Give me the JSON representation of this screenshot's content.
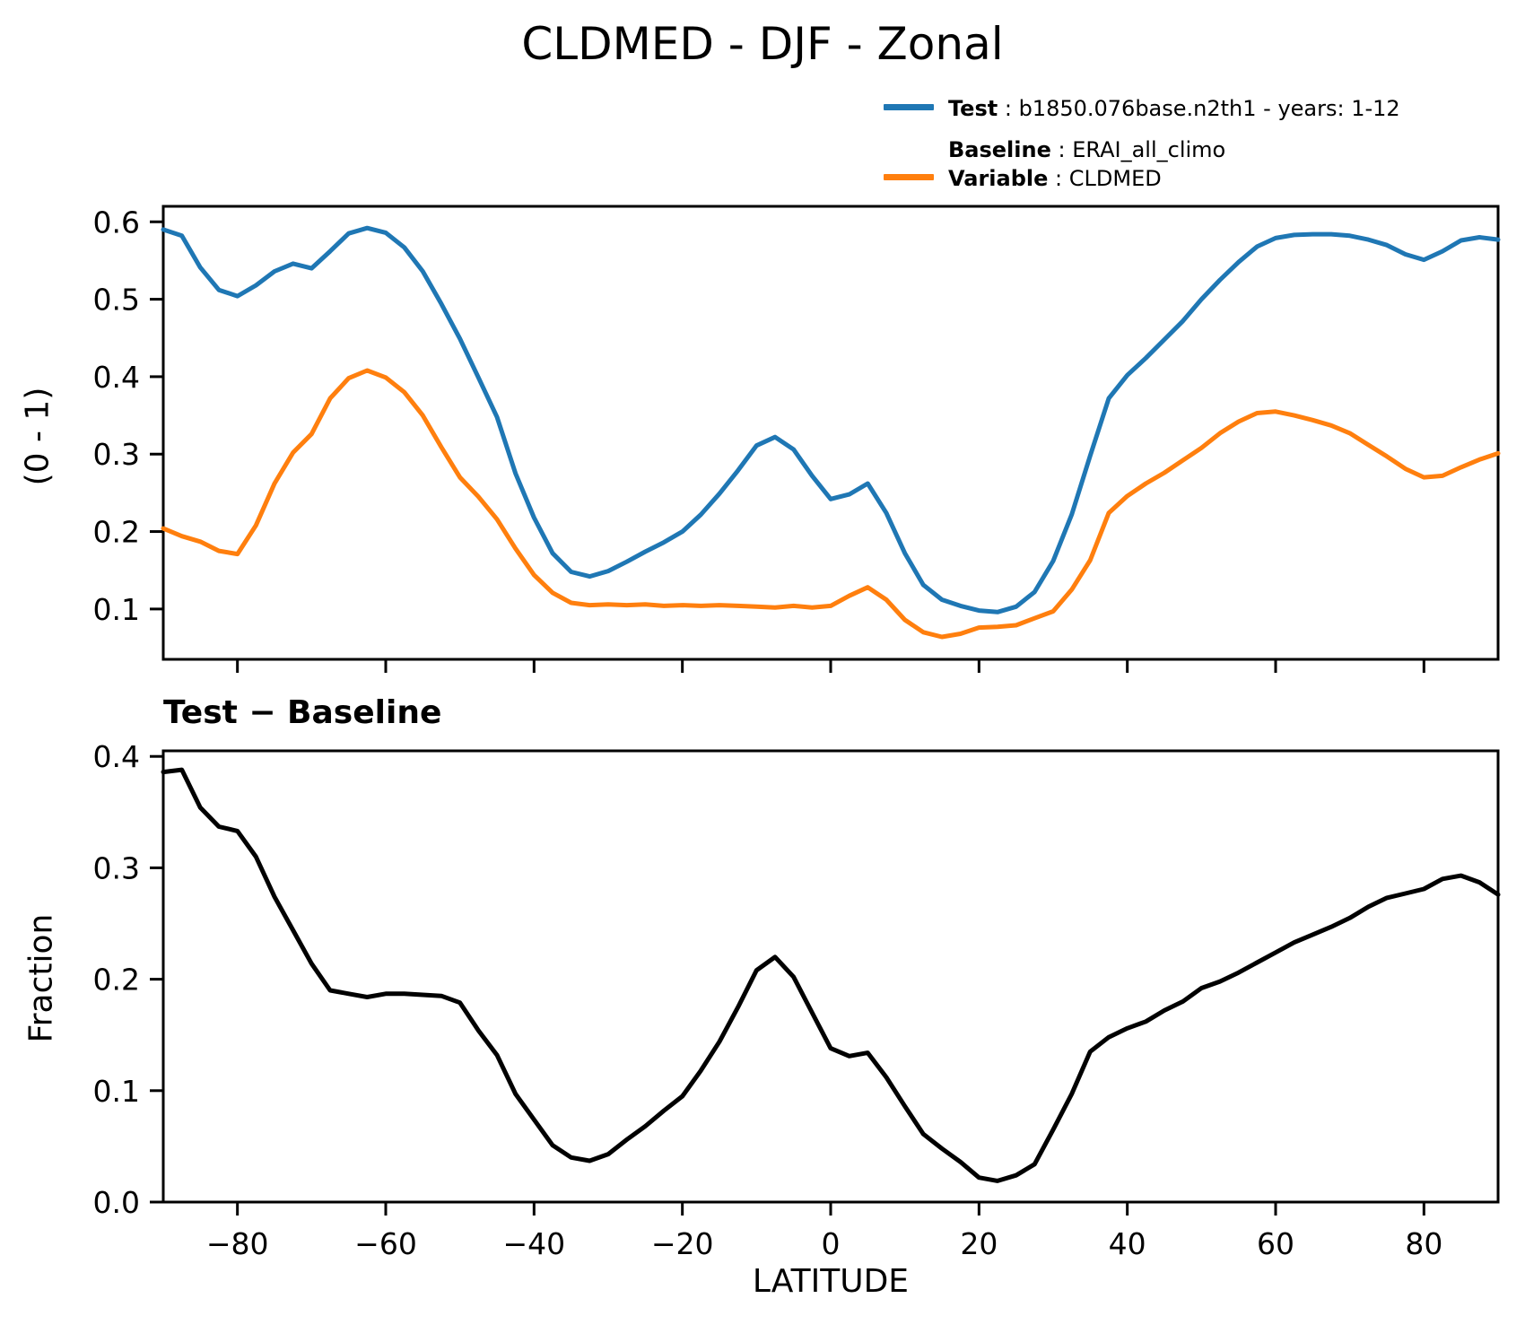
{
  "title": "CLDMED - DJF - Zonal",
  "legend": {
    "sep": " : ",
    "test": {
      "key": "Test",
      "value": "b1850.076base.n2th1 - years: 1-12",
      "color": "#1f77b4"
    },
    "baseline": {
      "key": "Baseline",
      "value": "ERAI_all_climo",
      "color": "#ff7f0e"
    },
    "variable": {
      "key": "Variable",
      "value": "CLDMED"
    }
  },
  "chart_data": [
    {
      "type": "line",
      "title": "",
      "xlabel": "",
      "ylabel": "(0 - 1)",
      "xlim": [
        -90,
        90
      ],
      "ylim": [
        0.035,
        0.62
      ],
      "grid": false,
      "legend_position": "top-right-outside",
      "yticks": [
        0.1,
        0.2,
        0.3,
        0.4,
        0.5,
        0.6
      ],
      "xticks": [
        -80,
        -60,
        -40,
        -20,
        0,
        20,
        40,
        60,
        80
      ],
      "xtick_labels": [],
      "x": [
        -90,
        -87.5,
        -85,
        -82.5,
        -80,
        -77.5,
        -75,
        -72.5,
        -70,
        -67.5,
        -65,
        -62.5,
        -60,
        -57.5,
        -55,
        -52.5,
        -50,
        -47.5,
        -45,
        -42.5,
        -40,
        -37.5,
        -35,
        -32.5,
        -30,
        -27.5,
        -25,
        -22.5,
        -20,
        -17.5,
        -15,
        -12.5,
        -10,
        -7.5,
        -5,
        -2.5,
        0,
        2.5,
        5,
        7.5,
        10,
        12.5,
        15,
        17.5,
        20,
        22.5,
        25,
        27.5,
        30,
        32.5,
        35,
        37.5,
        40,
        42.5,
        45,
        47.5,
        50,
        52.5,
        55,
        57.5,
        60,
        62.5,
        65,
        67.5,
        70,
        72.5,
        75,
        77.5,
        80,
        82.5,
        85,
        87.5,
        90
      ],
      "series": [
        {
          "name": "Test",
          "color": "#1f77b4",
          "values": [
            0.59,
            0.582,
            0.541,
            0.512,
            0.504,
            0.518,
            0.536,
            0.546,
            0.54,
            0.562,
            0.585,
            0.592,
            0.586,
            0.567,
            0.536,
            0.494,
            0.449,
            0.399,
            0.348,
            0.275,
            0.218,
            0.172,
            0.148,
            0.142,
            0.149,
            0.161,
            0.174,
            0.186,
            0.2,
            0.222,
            0.249,
            0.279,
            0.311,
            0.322,
            0.306,
            0.272,
            0.242,
            0.248,
            0.262,
            0.224,
            0.172,
            0.131,
            0.112,
            0.104,
            0.098,
            0.096,
            0.103,
            0.122,
            0.162,
            0.222,
            0.298,
            0.372,
            0.402,
            0.424,
            0.448,
            0.472,
            0.5,
            0.525,
            0.548,
            0.568,
            0.579,
            0.583,
            0.584,
            0.584,
            0.582,
            0.577,
            0.57,
            0.558,
            0.551,
            0.562,
            0.576,
            0.58,
            0.577
          ]
        },
        {
          "name": "Baseline",
          "color": "#ff7f0e",
          "values": [
            0.204,
            0.194,
            0.187,
            0.175,
            0.171,
            0.208,
            0.262,
            0.302,
            0.326,
            0.372,
            0.398,
            0.408,
            0.399,
            0.38,
            0.35,
            0.309,
            0.27,
            0.245,
            0.216,
            0.178,
            0.144,
            0.121,
            0.108,
            0.105,
            0.106,
            0.105,
            0.106,
            0.104,
            0.105,
            0.104,
            0.105,
            0.104,
            0.103,
            0.102,
            0.104,
            0.102,
            0.104,
            0.117,
            0.128,
            0.112,
            0.086,
            0.07,
            0.064,
            0.068,
            0.076,
            0.077,
            0.079,
            0.088,
            0.097,
            0.125,
            0.163,
            0.224,
            0.246,
            0.262,
            0.276,
            0.292,
            0.308,
            0.327,
            0.342,
            0.353,
            0.355,
            0.35,
            0.344,
            0.337,
            0.327,
            0.312,
            0.297,
            0.281,
            0.27,
            0.272,
            0.283,
            0.293,
            0.301
          ]
        }
      ]
    },
    {
      "type": "line",
      "title": "Test − Baseline",
      "xlabel": "LATITUDE",
      "ylabel": "Fraction",
      "xlim": [
        -90,
        90
      ],
      "ylim": [
        0.0,
        0.405
      ],
      "grid": false,
      "yticks": [
        0.0,
        0.1,
        0.2,
        0.3,
        0.4
      ],
      "xticks": [
        -80,
        -60,
        -40,
        -20,
        0,
        20,
        40,
        60,
        80
      ],
      "xtick_labels": [
        "−80",
        "−60",
        "−40",
        "−20",
        "0",
        "20",
        "40",
        "60",
        "80"
      ],
      "x": [
        -90,
        -87.5,
        -85,
        -82.5,
        -80,
        -77.5,
        -75,
        -72.5,
        -70,
        -67.5,
        -65,
        -62.5,
        -60,
        -57.5,
        -55,
        -52.5,
        -50,
        -47.5,
        -45,
        -42.5,
        -40,
        -37.5,
        -35,
        -32.5,
        -30,
        -27.5,
        -25,
        -22.5,
        -20,
        -17.5,
        -15,
        -12.5,
        -10,
        -7.5,
        -5,
        -2.5,
        0,
        2.5,
        5,
        7.5,
        10,
        12.5,
        15,
        17.5,
        20,
        22.5,
        25,
        27.5,
        30,
        32.5,
        35,
        37.5,
        40,
        42.5,
        45,
        47.5,
        50,
        52.5,
        55,
        57.5,
        60,
        62.5,
        65,
        67.5,
        70,
        72.5,
        75,
        77.5,
        80,
        82.5,
        85,
        87.5,
        90
      ],
      "series": [
        {
          "name": "Test − Baseline",
          "color": "#000000",
          "values": [
            0.386,
            0.388,
            0.354,
            0.337,
            0.333,
            0.31,
            0.274,
            0.244,
            0.214,
            0.19,
            0.187,
            0.184,
            0.187,
            0.187,
            0.186,
            0.185,
            0.179,
            0.154,
            0.132,
            0.097,
            0.074,
            0.051,
            0.04,
            0.037,
            0.043,
            0.056,
            0.068,
            0.082,
            0.095,
            0.118,
            0.144,
            0.175,
            0.208,
            0.22,
            0.202,
            0.17,
            0.138,
            0.131,
            0.134,
            0.112,
            0.086,
            0.061,
            0.048,
            0.036,
            0.022,
            0.019,
            0.024,
            0.034,
            0.065,
            0.097,
            0.135,
            0.148,
            0.156,
            0.162,
            0.172,
            0.18,
            0.192,
            0.198,
            0.206,
            0.215,
            0.224,
            0.233,
            0.24,
            0.247,
            0.255,
            0.265,
            0.273,
            0.277,
            0.281,
            0.29,
            0.293,
            0.287,
            0.276
          ]
        }
      ]
    }
  ]
}
